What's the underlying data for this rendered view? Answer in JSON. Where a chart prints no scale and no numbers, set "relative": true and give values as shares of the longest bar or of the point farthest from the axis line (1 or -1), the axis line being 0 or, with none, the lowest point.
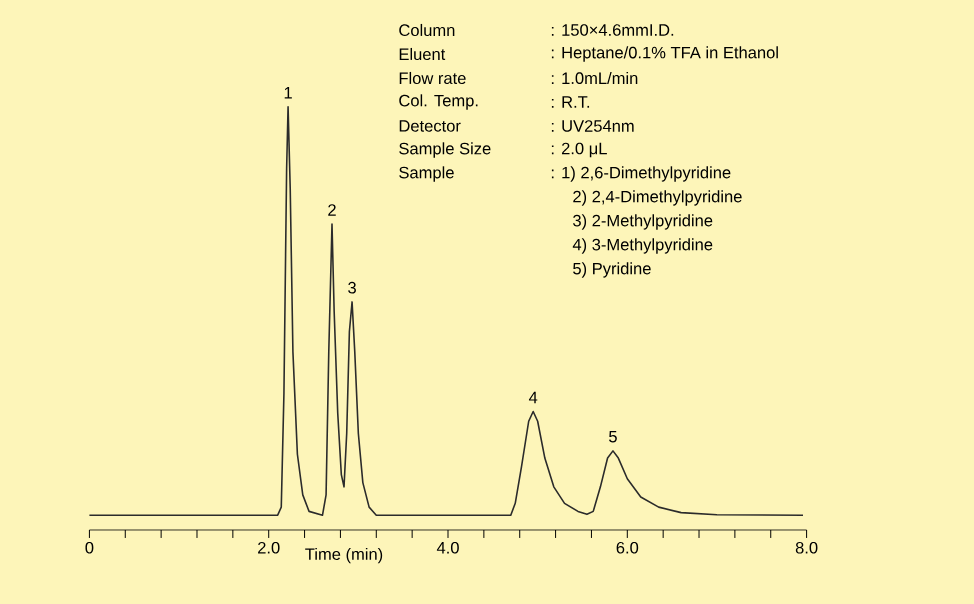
{
  "chart_data": {
    "type": "line",
    "relative": true,
    "xlabel": "Time (min)",
    "x": [
      0,
      2.1,
      2.14,
      2.17,
      2.2,
      2.216,
      2.24,
      2.27,
      2.32,
      2.38,
      2.45,
      2.6,
      2.64,
      2.67,
      2.706,
      2.73,
      2.77,
      2.81,
      2.84,
      2.87,
      2.9,
      2.93,
      2.96,
      3.0,
      3.05,
      3.12,
      3.2,
      4.7,
      4.75,
      4.82,
      4.9,
      4.95,
      5.0,
      5.08,
      5.18,
      5.3,
      5.45,
      5.55,
      5.62,
      5.7,
      5.78,
      5.84,
      5.9,
      6.0,
      6.15,
      6.35,
      6.6,
      7.0,
      7.96
    ],
    "series": [
      {
        "color": "#2b2b2b",
        "values": [
          0.035,
          0.035,
          0.054,
          0.324,
          0.855,
          1,
          0.807,
          0.421,
          0.179,
          0.083,
          0.044,
          0.035,
          0.083,
          0.421,
          0.723,
          0.517,
          0.276,
          0.131,
          0.102,
          0.228,
          0.469,
          0.539,
          0.421,
          0.228,
          0.112,
          0.054,
          0.035,
          0.035,
          0.063,
          0.15,
          0.257,
          0.28,
          0.257,
          0.17,
          0.102,
          0.063,
          0.044,
          0.037,
          0.044,
          0.102,
          0.17,
          0.187,
          0.17,
          0.121,
          0.078,
          0.054,
          0.041,
          0.036,
          0.035
        ]
      }
    ],
    "xlim": [
      0,
      8
    ],
    "xticks": [
      0,
      {
        "value": 0.4,
        "label": null
      },
      {
        "value": 0.8,
        "label": null
      },
      {
        "value": 1.2,
        "label": null
      },
      {
        "value": 1.6,
        "label": null
      },
      {
        "value": 2,
        "label": "2.0"
      },
      {
        "value": 2.4,
        "label": null
      },
      {
        "value": 2.8,
        "label": null
      },
      {
        "value": 3.2,
        "label": null
      },
      {
        "value": 3.6,
        "label": null
      },
      {
        "value": 4,
        "label": "4.0"
      },
      {
        "value": 4.4,
        "label": null
      },
      {
        "value": 4.8,
        "label": null
      },
      {
        "value": 5.2,
        "label": null
      },
      {
        "value": 5.6,
        "label": null
      },
      {
        "value": 6,
        "label": "6.0"
      },
      {
        "value": 6.4,
        "label": null
      },
      {
        "value": 6.8,
        "label": null
      },
      {
        "value": 7.2,
        "label": null
      },
      {
        "value": 7.6,
        "label": null
      },
      {
        "value": 8,
        "label": "8.0"
      }
    ],
    "grid": false,
    "marker": "none",
    "line_style": "solid",
    "annotations": [
      {
        "text": "1",
        "x": 2.216,
        "y": 1
      },
      {
        "text": "2",
        "x": 2.706,
        "y": 0.723
      },
      {
        "text": "3",
        "x": 2.93,
        "y": 0.539
      },
      {
        "text": "4",
        "x": 4.95,
        "y": 0.28
      },
      {
        "text": "5",
        "x": 5.84,
        "y": 0.187
      },
      "Column",
      ": 150×4.6mmI.D.",
      "Eluent",
      ": Heptane/0.1% TFA  in Ethanol",
      "Flow rate",
      ": 1.0mL/min",
      "Col. Temp.",
      ": R.T.",
      "Detector",
      ": UV254nm",
      "Sample Size",
      ": 2.0 μL",
      "Sample",
      ": 1)  2,6-Dimethylpyridine",
      "2)  2,4-Dimethylpyridine",
      "3)  2-Methylpyridine",
      "4)  3-Methylpyridine",
      "5)  Pyridine"
    ]
  }
}
